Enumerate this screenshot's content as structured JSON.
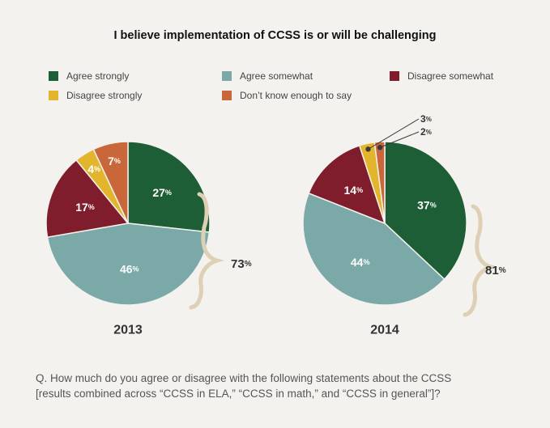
{
  "chart_data": {
    "type": "pie",
    "title": "I believe implementation of CCSS is or will be challenging",
    "legend": [
      {
        "label": "Agree strongly",
        "color": "#1d5e36"
      },
      {
        "label": "Agree somewhat",
        "color": "#7aa9a8"
      },
      {
        "label": "Disagree somewhat",
        "color": "#801d2d"
      },
      {
        "label": "Disagree strongly",
        "color": "#e3b52d"
      },
      {
        "label": "Don’t know enough to say",
        "color": "#c9673a"
      }
    ],
    "charts": [
      {
        "year": "2013",
        "values": [
          27,
          46,
          17,
          4,
          7
        ],
        "combined_agree": 73
      },
      {
        "year": "2014",
        "values": [
          37,
          44,
          14,
          3,
          2
        ],
        "combined_agree": 81
      }
    ],
    "percent_sign": "%"
  },
  "question": {
    "line1": "Q. How much do you agree or disagree with the following statements about the CCSS",
    "line2": "[results combined across “CCSS in ELA,” “CCSS in math,” and “CCSS in general”]?"
  }
}
